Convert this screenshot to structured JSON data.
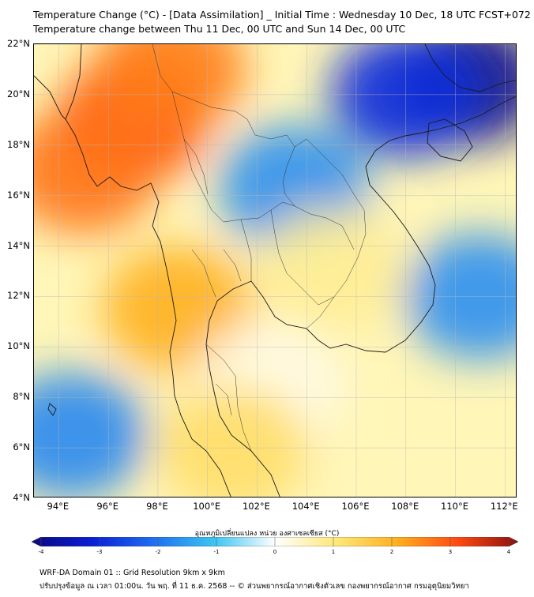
{
  "title": {
    "line1": "Temperature Change (°C) - [Data Assimilation] _ Initial Time : Wednesday 10 Dec, 18 UTC FCST+072",
    "line2": "Temperature change between Thu 11 Dec, 00 UTC and Sun 14 Dec, 00 UTC"
  },
  "map": {
    "lat_labels": [
      "22°N",
      "20°N",
      "18°N",
      "16°N",
      "14°N",
      "12°N",
      "10°N",
      "8°N",
      "6°N",
      "4°N"
    ],
    "lon_labels": [
      "94°E",
      "96°E",
      "98°E",
      "100°E",
      "102°E",
      "104°E",
      "106°E",
      "108°E",
      "110°E",
      "112°E"
    ],
    "lat_range": [
      4,
      22
    ],
    "lon_range": [
      93,
      112.5
    ],
    "regions": [
      {
        "name": "myanmar-west-warm-core",
        "temp_change": 3.0,
        "lon": 97.0,
        "lat": 19.0
      },
      {
        "name": "bay-of-bengal-warm",
        "temp_change": 2.6,
        "lon": 95.0,
        "lat": 17.0
      },
      {
        "name": "myanmar-north-warm",
        "temp_change": 2.5,
        "lon": 98.5,
        "lat": 21.0
      },
      {
        "name": "thailand-west-warm",
        "temp_change": 2.0,
        "lon": 98.8,
        "lat": 11.5
      },
      {
        "name": "south-china-sea-north-cold",
        "temp_change": -3.8,
        "lon": 110.5,
        "lat": 20.5
      },
      {
        "name": "gulf-of-tonkin-cold",
        "temp_change": -2.8,
        "lon": 108.0,
        "lat": 20.0
      },
      {
        "name": "laos-cold-patch",
        "temp_change": -1.6,
        "lon": 103.5,
        "lat": 16.3
      },
      {
        "name": "south-china-sea-east-cool",
        "temp_change": -1.6,
        "lon": 111.0,
        "lat": 12.0
      },
      {
        "name": "andaman-south-cool",
        "temp_change": -1.7,
        "lon": 94.5,
        "lat": 6.5
      },
      {
        "name": "gulf-of-thailand-neutral",
        "temp_change": 0.2,
        "lon": 102.5,
        "lat": 8.5
      },
      {
        "name": "malay-peninsula-warm",
        "temp_change": 1.2,
        "lon": 101.0,
        "lat": 6.0
      },
      {
        "name": "cambodia-warm",
        "temp_change": 0.8,
        "lon": 105.0,
        "lat": 13.0
      }
    ]
  },
  "colorbar": {
    "label": "อุณหภูมิเปลี่ยนแปลง หน่วย องศาเซลเซียส (°C)",
    "ticks": [
      "-4",
      "-3",
      "-2",
      "-1",
      "0",
      "1",
      "2",
      "3",
      "4"
    ],
    "min": -4,
    "max": 4,
    "colors": [
      "#0a0a7a",
      "#0b1ed6",
      "#1f6ef0",
      "#3cc4f0",
      "#ffffff",
      "#ffe87a",
      "#ffb020",
      "#ff4a10",
      "#8a1010"
    ]
  },
  "footer": {
    "line1": "WRF-DA Domain 01 :: Grid Resolution 9km x 9km",
    "line2": "ปรับปรุงข้อมูล ณ เวลา 01:00น. วัน พฤ. ที่ 11 ธ.ค. 2568 -- © ส่วนพยากรณ์อากาศเชิงตัวเลข กองพยากรณ์อากาศ กรมอุตุนิยมวิทยา"
  }
}
